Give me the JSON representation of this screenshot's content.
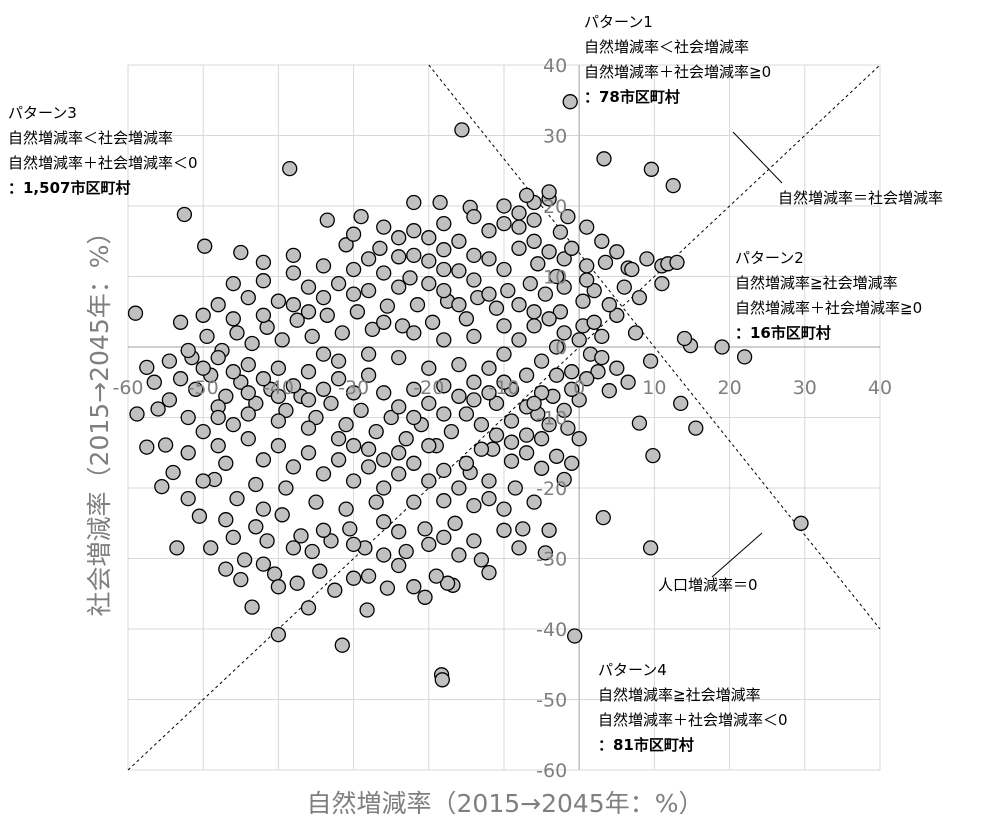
{
  "chart_data": {
    "type": "scatter",
    "xlabel": "自然増減率（2015→2045年：%）",
    "ylabel": "社会増減率（2015→2045年：%）",
    "xlim": [
      -60,
      40
    ],
    "ylim": [
      -60,
      40
    ],
    "x_ticks": [
      "-60",
      "-50",
      "-40",
      "-30",
      "-20",
      "-10",
      "0",
      "10",
      "20",
      "30",
      "40"
    ],
    "y_ticks": [
      "40",
      "30",
      "20",
      "10",
      "0",
      "-10",
      "-20",
      "-30",
      "-40",
      "-50",
      "-60"
    ],
    "grid": true,
    "marker_fill": "#c0c0c0",
    "marker_stroke": "#000000",
    "reference_lines": [
      {
        "name": "自然増減率＝社会増減率",
        "equation": "y = x"
      },
      {
        "name": "人口増減率＝0",
        "equation": "y = -x"
      }
    ],
    "annotations": {
      "pattern1": {
        "title": "パターン1",
        "line1": "自然増減率＜社会増減率",
        "line2": "自然増減率＋社会増減率≧0",
        "count": "：78市区町村"
      },
      "pattern2": {
        "title": "パターン2",
        "line1": "自然増減率≧社会増減率",
        "line2": "自然増減率＋社会増減率≧0",
        "count": "：16市区町村"
      },
      "pattern3": {
        "title": "パターン3",
        "line1": "自然増減率＜社会増減率",
        "line2": "自然増減率＋社会増減率＜0",
        "count": "：1,507市区町村"
      },
      "pattern4": {
        "title": "パターン4",
        "line1": "自然増減率≧社会増減率",
        "line2": "自然増減率＋社会増減率＜0",
        "count": "：81市区町村"
      },
      "line_eq_label": "自然増減率＝社会増減率",
      "line_zero_label": "人口増減率＝0"
    },
    "points": [
      [
        -1.2,
        34.8
      ],
      [
        -15.6,
        30.8
      ],
      [
        -38.5,
        25.3
      ],
      [
        3.3,
        26.7
      ],
      [
        9.6,
        25.2
      ],
      [
        12.5,
        22.9
      ],
      [
        -49.8,
        14.3
      ],
      [
        -52.5,
        18.8
      ],
      [
        -59.0,
        4.8
      ],
      [
        -57.5,
        -2.9
      ],
      [
        -56.0,
        -8.8
      ],
      [
        -54.5,
        -2.0
      ],
      [
        -55.0,
        -13.9
      ],
      [
        -45.0,
        13.4
      ],
      [
        -42.0,
        9.4
      ],
      [
        14.8,
        0.2
      ],
      [
        22.0,
        -1.4
      ],
      [
        29.5,
        -25.0
      ],
      [
        15.5,
        -11.5
      ],
      [
        9.8,
        -15.4
      ],
      [
        9.5,
        -28.5
      ],
      [
        3.2,
        -24.2
      ],
      [
        -0.6,
        -41.0
      ],
      [
        -31.5,
        -42.3
      ],
      [
        -43.5,
        -36.9
      ],
      [
        -40.0,
        -40.8
      ],
      [
        -18.3,
        -46.5
      ],
      [
        -18.2,
        -47.2
      ],
      [
        -20.5,
        -35.5
      ],
      [
        -25.5,
        -34.2
      ],
      [
        -16.8,
        -33.8
      ],
      [
        -28.2,
        -37.3
      ],
      [
        11.0,
        11.5
      ],
      [
        11.8,
        11.8
      ],
      [
        6.5,
        11.2
      ],
      [
        3.5,
        12.0
      ],
      [
        1.0,
        11.5
      ],
      [
        -2.5,
        16.3
      ],
      [
        -4.0,
        21.0
      ],
      [
        -22.0,
        20.5
      ],
      [
        -18.5,
        20.5
      ],
      [
        -14.5,
        19.8
      ],
      [
        -10.0,
        20.0
      ],
      [
        -6.0,
        20.5
      ],
      [
        -33.5,
        18.0
      ],
      [
        -29.0,
        18.5
      ],
      [
        -31.0,
        14.5
      ],
      [
        -26.5,
        14.0
      ],
      [
        -26.0,
        10.5
      ],
      [
        -24.0,
        12.8
      ],
      [
        -22.5,
        9.8
      ],
      [
        -20.0,
        12.2
      ],
      [
        -18.0,
        13.8
      ],
      [
        -16.0,
        10.8
      ],
      [
        -12.0,
        12.5
      ],
      [
        -8.0,
        14.0
      ],
      [
        -5.5,
        11.8
      ],
      [
        -2.0,
        8.5
      ],
      [
        0.5,
        6.5
      ],
      [
        2.0,
        8.0
      ],
      [
        5.0,
        4.5
      ],
      [
        7.5,
        2.0
      ],
      [
        9.5,
        -2.0
      ],
      [
        13.5,
        -8.0
      ],
      [
        14.0,
        1.2
      ],
      [
        19.0,
        0.0
      ],
      [
        6.5,
        -5.0
      ],
      [
        4.0,
        -6.2
      ],
      [
        8.0,
        -10.8
      ],
      [
        2.5,
        -3.5
      ],
      [
        0.0,
        -7.5
      ],
      [
        -1.5,
        -11.5
      ],
      [
        -2.0,
        -18.8
      ],
      [
        -5.0,
        -17.2
      ],
      [
        -8.5,
        -20.0
      ],
      [
        -12.0,
        -21.5
      ],
      [
        -4.0,
        -26.0
      ],
      [
        -4.5,
        -29.2
      ],
      [
        -7.5,
        -25.8
      ],
      [
        -13.0,
        -30.2
      ],
      [
        -17.5,
        -33.5
      ],
      [
        -19.0,
        -32.5
      ],
      [
        -23.0,
        -29.0
      ],
      [
        -30.0,
        -32.8
      ],
      [
        -32.5,
        -34.5
      ],
      [
        -34.5,
        -31.8
      ],
      [
        -37.5,
        -33.5
      ],
      [
        -40.5,
        -32.2
      ],
      [
        -42.0,
        -30.8
      ],
      [
        -44.5,
        -30.2
      ],
      [
        -47.0,
        -31.5
      ],
      [
        -49.0,
        -28.5
      ],
      [
        -53.5,
        -28.5
      ],
      [
        -50.5,
        -24.0
      ],
      [
        -55.5,
        -19.8
      ],
      [
        -57.5,
        -14.2
      ],
      [
        -58.8,
        -9.5
      ],
      [
        -54.0,
        -17.8
      ],
      [
        -52.0,
        -21.5
      ],
      [
        -48.5,
        -18.8
      ],
      [
        -47.0,
        -24.5
      ],
      [
        -45.5,
        -21.5
      ],
      [
        -43.0,
        -25.5
      ],
      [
        -41.5,
        -27.5
      ],
      [
        -39.5,
        -23.8
      ],
      [
        -37.0,
        -26.8
      ],
      [
        -35.5,
        -29.0
      ],
      [
        -33.0,
        -27.5
      ],
      [
        -30.5,
        -25.8
      ],
      [
        -28.5,
        -28.5
      ],
      [
        -26.0,
        -24.8
      ],
      [
        -24.0,
        -26.2
      ],
      [
        -22.0,
        -22.0
      ],
      [
        -20.5,
        -25.8
      ],
      [
        -18.0,
        -21.8
      ],
      [
        -16.5,
        -25.0
      ],
      [
        -14.5,
        -17.8
      ],
      [
        -11.5,
        -14.5
      ],
      [
        -9.0,
        -16.2
      ],
      [
        -7.0,
        -12.5
      ],
      [
        -5.5,
        -9.5
      ],
      [
        -3.5,
        -7.0
      ],
      [
        -1.0,
        -3.5
      ],
      [
        1.5,
        -1.0
      ],
      [
        3.0,
        1.5
      ],
      [
        0.5,
        3.0
      ],
      [
        -2.5,
        5.0
      ],
      [
        -4.5,
        7.5
      ],
      [
        -6.5,
        9.0
      ],
      [
        -9.5,
        8.0
      ],
      [
        -11.0,
        5.5
      ],
      [
        -13.5,
        7.0
      ],
      [
        -15.0,
        4.0
      ],
      [
        -17.5,
        6.5
      ],
      [
        -19.5,
        3.5
      ],
      [
        -21.5,
        6.0
      ],
      [
        -23.5,
        3.0
      ],
      [
        -25.5,
        5.8
      ],
      [
        -27.5,
        2.5
      ],
      [
        -29.5,
        5.0
      ],
      [
        -31.5,
        2.0
      ],
      [
        -33.5,
        4.5
      ],
      [
        -35.5,
        1.5
      ],
      [
        -37.5,
        3.8
      ],
      [
        -39.5,
        1.0
      ],
      [
        -41.5,
        2.8
      ],
      [
        -43.5,
        0.5
      ],
      [
        -45.5,
        2.0
      ],
      [
        -47.5,
        -0.5
      ],
      [
        -49.5,
        1.5
      ],
      [
        -51.5,
        -1.5
      ],
      [
        -53.0,
        -4.5
      ],
      [
        -51.0,
        -6.0
      ],
      [
        -49.0,
        -4.0
      ],
      [
        -47.0,
        -7.0
      ],
      [
        -45.0,
        -5.0
      ],
      [
        -43.0,
        -8.0
      ],
      [
        -41.0,
        -6.0
      ],
      [
        -39.0,
        -9.0
      ],
      [
        -37.0,
        -7.0
      ],
      [
        -35.0,
        -10.0
      ],
      [
        -33.0,
        -8.0
      ],
      [
        -31.0,
        -11.0
      ],
      [
        -29.0,
        -9.0
      ],
      [
        -27.0,
        -12.0
      ],
      [
        -25.0,
        -10.0
      ],
      [
        -23.0,
        -13.0
      ],
      [
        -21.0,
        -11.0
      ],
      [
        -19.0,
        -14.0
      ],
      [
        -17.0,
        -12.0
      ],
      [
        -15.0,
        -9.5
      ],
      [
        -13.0,
        -11.0
      ],
      [
        -11.0,
        -8.0
      ],
      [
        -9.0,
        -6.0
      ],
      [
        -7.0,
        -4.0
      ],
      [
        -5.0,
        -2.0
      ],
      [
        -3.0,
        0.0
      ],
      [
        -6.0,
        3.0
      ],
      [
        -8.0,
        1.0
      ],
      [
        -10.0,
        -1.0
      ],
      [
        -12.0,
        -3.0
      ],
      [
        -14.0,
        -5.0
      ],
      [
        -16.0,
        -7.0
      ],
      [
        -18.0,
        -5.5
      ],
      [
        -20.0,
        -8.0
      ],
      [
        -22.0,
        -6.0
      ],
      [
        -24.0,
        -8.5
      ],
      [
        -26.0,
        -6.5
      ],
      [
        -28.0,
        -4.0
      ],
      [
        -30.0,
        -6.5
      ],
      [
        -32.0,
        -4.5
      ],
      [
        -34.0,
        -6.0
      ],
      [
        -36.0,
        -3.5
      ],
      [
        -38.0,
        -5.5
      ],
      [
        -40.0,
        -3.0
      ],
      [
        -42.0,
        -4.5
      ],
      [
        -44.0,
        -2.5
      ],
      [
        -46.0,
        -3.5
      ],
      [
        -48.0,
        -1.5
      ],
      [
        -50.0,
        -3.0
      ],
      [
        -52.0,
        -0.5
      ],
      [
        -44.0,
        -13.0
      ],
      [
        -46.0,
        -11.0
      ],
      [
        -48.0,
        -14.0
      ],
      [
        -50.0,
        -12.0
      ],
      [
        -52.0,
        -15.0
      ],
      [
        -42.0,
        -16.0
      ],
      [
        -40.0,
        -14.0
      ],
      [
        -38.0,
        -17.0
      ],
      [
        -36.0,
        -15.0
      ],
      [
        -34.0,
        -18.0
      ],
      [
        -32.0,
        -16.0
      ],
      [
        -30.0,
        -19.0
      ],
      [
        -28.0,
        -17.0
      ],
      [
        -26.0,
        -20.0
      ],
      [
        -24.0,
        -18.0
      ],
      [
        -22.0,
        -16.5
      ],
      [
        -20.0,
        -19.0
      ],
      [
        -18.0,
        -17.5
      ],
      [
        -16.0,
        -20.0
      ],
      [
        -14.0,
        -22.5
      ],
      [
        -12.0,
        -19.0
      ],
      [
        -10.0,
        -23.0
      ],
      [
        -27.0,
        -22.0
      ],
      [
        -31.0,
        -23.0
      ],
      [
        -35.0,
        -22.0
      ],
      [
        -39.0,
        -20.0
      ],
      [
        -43.0,
        -19.5
      ],
      [
        -47.0,
        -16.5
      ],
      [
        -32.0,
        9.0
      ],
      [
        -34.0,
        11.5
      ],
      [
        -36.0,
        8.5
      ],
      [
        -38.0,
        10.5
      ],
      [
        -30.0,
        11.0
      ],
      [
        -28.0,
        8.0
      ],
      [
        -24.0,
        8.5
      ],
      [
        -20.0,
        9.0
      ],
      [
        -16.0,
        15.0
      ],
      [
        -14.0,
        13.0
      ],
      [
        -12.0,
        16.5
      ],
      [
        -10.0,
        11.0
      ],
      [
        -8.0,
        17.0
      ],
      [
        -6.0,
        15.0
      ],
      [
        -4.0,
        13.5
      ],
      [
        -2.0,
        12.5
      ],
      [
        -20.0,
        15.5
      ],
      [
        -22.0,
        16.5
      ],
      [
        -24.0,
        15.5
      ],
      [
        -18.0,
        17.5
      ],
      [
        -14.0,
        18.5
      ],
      [
        -10.0,
        17.5
      ],
      [
        -8.0,
        19.0
      ],
      [
        -6.0,
        18.0
      ],
      [
        -12.0,
        7.5
      ],
      [
        -14.0,
        9.5
      ],
      [
        -16.0,
        6.0
      ],
      [
        -18.0,
        8.0
      ],
      [
        -8.0,
        6.0
      ],
      [
        -6.0,
        5.0
      ],
      [
        -4.0,
        4.0
      ],
      [
        -2.0,
        2.0
      ],
      [
        0.0,
        1.0
      ],
      [
        2.0,
        3.5
      ],
      [
        4.0,
        6.0
      ],
      [
        6.0,
        8.5
      ],
      [
        8.0,
        7.0
      ],
      [
        1.0,
        9.5
      ],
      [
        -1.0,
        14.0
      ],
      [
        -3.0,
        10.0
      ],
      [
        3.0,
        -1.5
      ],
      [
        5.0,
        -3.0
      ],
      [
        1.0,
        -4.5
      ],
      [
        -1.0,
        -6.0
      ],
      [
        -3.0,
        -4.0
      ],
      [
        -5.0,
        -6.5
      ],
      [
        -7.0,
        -8.5
      ],
      [
        -9.0,
        -10.5
      ],
      [
        -11.0,
        -12.5
      ],
      [
        -13.0,
        -14.5
      ],
      [
        -15.0,
        -16.5
      ],
      [
        -9.0,
        -13.5
      ],
      [
        -7.0,
        -15.0
      ],
      [
        -5.0,
        -13.0
      ],
      [
        -3.0,
        -15.5
      ],
      [
        -20.0,
        -28.0
      ],
      [
        -18.0,
        -27.0
      ],
      [
        -24.0,
        -31.0
      ],
      [
        -26.0,
        -29.5
      ],
      [
        -30.0,
        -28.0
      ],
      [
        -34.0,
        -26.0
      ],
      [
        -38.0,
        -28.5
      ],
      [
        -42.0,
        -23.0
      ],
      [
        -46.0,
        -27.0
      ],
      [
        -50.0,
        -19.0
      ],
      [
        -44.0,
        7.0
      ],
      [
        -46.0,
        9.0
      ],
      [
        -48.0,
        6.0
      ],
      [
        -40.0,
        6.5
      ],
      [
        -42.0,
        12.0
      ],
      [
        -38.0,
        13.0
      ],
      [
        -36.0,
        5.0
      ],
      [
        -28.0,
        12.5
      ],
      [
        -26.0,
        17.0
      ],
      [
        -30.0,
        16.0
      ],
      [
        -22.0,
        13.0
      ],
      [
        -18.0,
        11.0
      ],
      [
        -34.0,
        -1.0
      ],
      [
        -36.0,
        -11.5
      ],
      [
        -32.0,
        -13.0
      ],
      [
        -28.0,
        -14.5
      ],
      [
        -24.0,
        -15.0
      ],
      [
        -20.0,
        -14.0
      ],
      [
        -40.0,
        -10.5
      ],
      [
        -44.0,
        -9.5
      ],
      [
        -48.0,
        -8.5
      ],
      [
        -52.0,
        -10.0
      ],
      [
        -54.5,
        -7.5
      ],
      [
        -56.5,
        -5.0
      ],
      [
        -53.0,
        3.5
      ],
      [
        -50.0,
        4.5
      ],
      [
        -46.0,
        4.0
      ],
      [
        -42.0,
        4.5
      ],
      [
        -38.0,
        6.0
      ],
      [
        -34.0,
        7.0
      ],
      [
        -30.0,
        7.5
      ],
      [
        -26.0,
        3.5
      ],
      [
        -22.0,
        2.0
      ],
      [
        -18.0,
        1.0
      ],
      [
        -14.0,
        1.5
      ],
      [
        -10.0,
        3.0
      ],
      [
        -12.0,
        -6.5
      ],
      [
        -16.0,
        -2.5
      ],
      [
        -20.0,
        -3.0
      ],
      [
        -24.0,
        -1.5
      ],
      [
        -28.0,
        -1.0
      ],
      [
        -32.0,
        -2.0
      ],
      [
        -36.0,
        -7.5
      ],
      [
        -40.0,
        -7.0
      ],
      [
        -44.0,
        -6.5
      ],
      [
        -48.0,
        -10.0
      ],
      [
        -30.0,
        -14.0
      ],
      [
        -26.0,
        -16.0
      ],
      [
        -22.0,
        -10.0
      ],
      [
        -18.0,
        -9.5
      ],
      [
        -14.0,
        -7.5
      ],
      [
        -10.0,
        -5.0
      ],
      [
        -6.0,
        -8.0
      ],
      [
        -4.0,
        -11.0
      ],
      [
        -2.0,
        -9.0
      ],
      [
        0.0,
        -13.0
      ],
      [
        -1.0,
        -16.5
      ],
      [
        -6.0,
        -22.0
      ],
      [
        -10.0,
        -26.0
      ],
      [
        -14.0,
        -27.5
      ],
      [
        -8.0,
        -28.5
      ],
      [
        -12.0,
        -32.0
      ],
      [
        -16.0,
        -29.5
      ],
      [
        -22.0,
        -34.0
      ],
      [
        -28.0,
        -32.5
      ],
      [
        -36.0,
        -37.0
      ],
      [
        -40.0,
        -34.0
      ],
      [
        -45.0,
        -33.0
      ],
      [
        -4.0,
        22.0
      ],
      [
        -7.0,
        21.5
      ],
      [
        -1.5,
        18.5
      ],
      [
        1.0,
        17.0
      ],
      [
        3.0,
        15.0
      ],
      [
        5.0,
        13.5
      ],
      [
        7.0,
        11.0
      ],
      [
        9.0,
        12.5
      ],
      [
        11.0,
        9.0
      ],
      [
        13.0,
        12.0
      ]
    ]
  }
}
